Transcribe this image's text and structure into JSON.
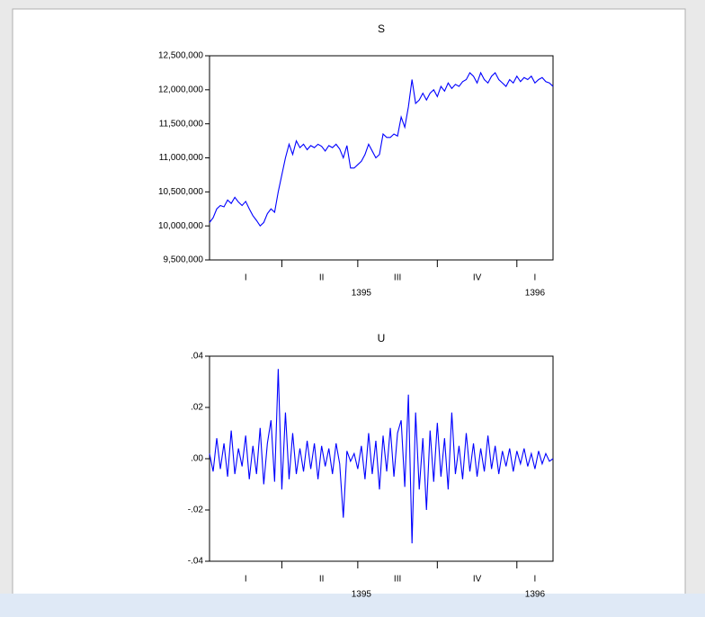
{
  "chart_data": [
    {
      "type": "line",
      "title": "S",
      "color": "#0000ff",
      "categories": [
        null,
        null,
        null,
        null,
        null,
        null,
        null,
        null,
        null,
        null,
        "I",
        null,
        null,
        null,
        null,
        null,
        null,
        null,
        null,
        null,
        null,
        null,
        null,
        null,
        null,
        null,
        null,
        null,
        null,
        null,
        null,
        "II",
        null,
        null,
        null,
        null,
        null,
        null,
        null,
        null,
        null,
        null,
        null,
        null,
        null,
        null,
        null,
        null,
        null,
        null,
        null,
        null,
        "III",
        null,
        null,
        null,
        null,
        null,
        null,
        null,
        null,
        null,
        null,
        null,
        null,
        null,
        null,
        null,
        null,
        null,
        null,
        null,
        null,
        null,
        "IV",
        null,
        null,
        null,
        null,
        null,
        null,
        null,
        null,
        null,
        null,
        null,
        null,
        null,
        null,
        null,
        "I",
        null,
        null,
        null,
        null,
        null
      ],
      "quarter_starts": [
        20,
        41,
        63,
        85
      ],
      "x_groups": [
        {
          "label": "1395",
          "start": 0,
          "end": 84
        },
        {
          "label": "1396",
          "start": 85,
          "end": 95
        }
      ],
      "values": [
        10050000,
        10120000,
        10250000,
        10300000,
        10280000,
        10380000,
        10330000,
        10420000,
        10350000,
        10300000,
        10360000,
        10250000,
        10150000,
        10080000,
        10000000,
        10050000,
        10180000,
        10250000,
        10200000,
        10500000,
        10750000,
        11000000,
        11200000,
        11050000,
        11250000,
        11150000,
        11200000,
        11120000,
        11180000,
        11150000,
        11200000,
        11170000,
        11100000,
        11180000,
        11150000,
        11200000,
        11130000,
        11000000,
        11180000,
        10850000,
        10850000,
        10900000,
        10950000,
        11050000,
        11200000,
        11100000,
        11000000,
        11050000,
        11350000,
        11300000,
        11300000,
        11350000,
        11320000,
        11600000,
        11450000,
        11750000,
        12150000,
        11800000,
        11850000,
        11950000,
        11850000,
        11950000,
        12000000,
        11900000,
        12050000,
        11980000,
        12100000,
        12020000,
        12080000,
        12050000,
        12120000,
        12150000,
        12250000,
        12200000,
        12100000,
        12250000,
        12150000,
        12100000,
        12200000,
        12250000,
        12150000,
        12100000,
        12050000,
        12150000,
        12100000,
        12200000,
        12120000,
        12180000,
        12150000,
        12200000,
        12100000,
        12150000,
        12180000,
        12120000,
        12100000,
        12050000
      ],
      "ylim": [
        9500000,
        12500000
      ],
      "yticks": [
        {
          "value": 9500000,
          "label": "9,500,000"
        },
        {
          "value": 10000000,
          "label": "10,000,000"
        },
        {
          "value": 10500000,
          "label": "10,500,000"
        },
        {
          "value": 11000000,
          "label": "11,000,000"
        },
        {
          "value": 11500000,
          "label": "11,500,000"
        },
        {
          "value": 12000000,
          "label": "12,000,000"
        },
        {
          "value": 12500000,
          "label": "12,500,000"
        }
      ]
    },
    {
      "type": "line",
      "title": "U",
      "color": "#0000ff",
      "categories": [
        null,
        null,
        null,
        null,
        null,
        null,
        null,
        null,
        null,
        null,
        "I",
        null,
        null,
        null,
        null,
        null,
        null,
        null,
        null,
        null,
        null,
        null,
        null,
        null,
        null,
        null,
        null,
        null,
        null,
        null,
        null,
        "II",
        null,
        null,
        null,
        null,
        null,
        null,
        null,
        null,
        null,
        null,
        null,
        null,
        null,
        null,
        null,
        null,
        null,
        null,
        null,
        null,
        "III",
        null,
        null,
        null,
        null,
        null,
        null,
        null,
        null,
        null,
        null,
        null,
        null,
        null,
        null,
        null,
        null,
        null,
        null,
        null,
        null,
        null,
        "IV",
        null,
        null,
        null,
        null,
        null,
        null,
        null,
        null,
        null,
        null,
        null,
        null,
        null,
        null,
        null,
        "I",
        null,
        null,
        null,
        null,
        null
      ],
      "quarter_starts": [
        20,
        41,
        63,
        85
      ],
      "x_groups": [
        {
          "label": "1395",
          "start": 0,
          "end": 84
        },
        {
          "label": "1396",
          "start": 85,
          "end": 95
        }
      ],
      "values": [
        0.002,
        -0.005,
        0.008,
        -0.004,
        0.006,
        -0.007,
        0.011,
        -0.006,
        0.004,
        -0.003,
        0.009,
        -0.008,
        0.005,
        -0.006,
        0.012,
        -0.01,
        0.006,
        0.015,
        -0.009,
        0.035,
        -0.012,
        0.018,
        -0.008,
        0.01,
        -0.006,
        0.004,
        -0.005,
        0.007,
        -0.004,
        0.006,
        -0.008,
        0.005,
        -0.003,
        0.004,
        -0.006,
        0.006,
        -0.002,
        -0.023,
        0.003,
        -0.001,
        0.002,
        -0.004,
        0.005,
        -0.008,
        0.01,
        -0.006,
        0.007,
        -0.012,
        0.009,
        -0.005,
        0.012,
        -0.007,
        0.01,
        0.015,
        -0.011,
        0.025,
        -0.033,
        0.018,
        -0.012,
        0.008,
        -0.02,
        0.011,
        -0.009,
        0.014,
        -0.007,
        0.008,
        -0.012,
        0.018,
        -0.006,
        0.005,
        -0.008,
        0.01,
        -0.005,
        0.006,
        -0.007,
        0.004,
        -0.005,
        0.009,
        -0.004,
        0.005,
        -0.006,
        0.003,
        -0.003,
        0.004,
        -0.005,
        0.003,
        -0.002,
        0.004,
        -0.003,
        0.002,
        -0.004,
        0.003,
        -0.002,
        0.002,
        -0.001,
        0
      ],
      "ylim": [
        -0.04,
        0.04
      ],
      "yticks": [
        {
          "value": -0.04,
          "label": "-.04"
        },
        {
          "value": -0.02,
          "label": "-.02"
        },
        {
          "value": 0,
          "label": ".00"
        },
        {
          "value": 0.02,
          "label": ".02"
        },
        {
          "value": 0.04,
          "label": ".04"
        }
      ]
    }
  ]
}
